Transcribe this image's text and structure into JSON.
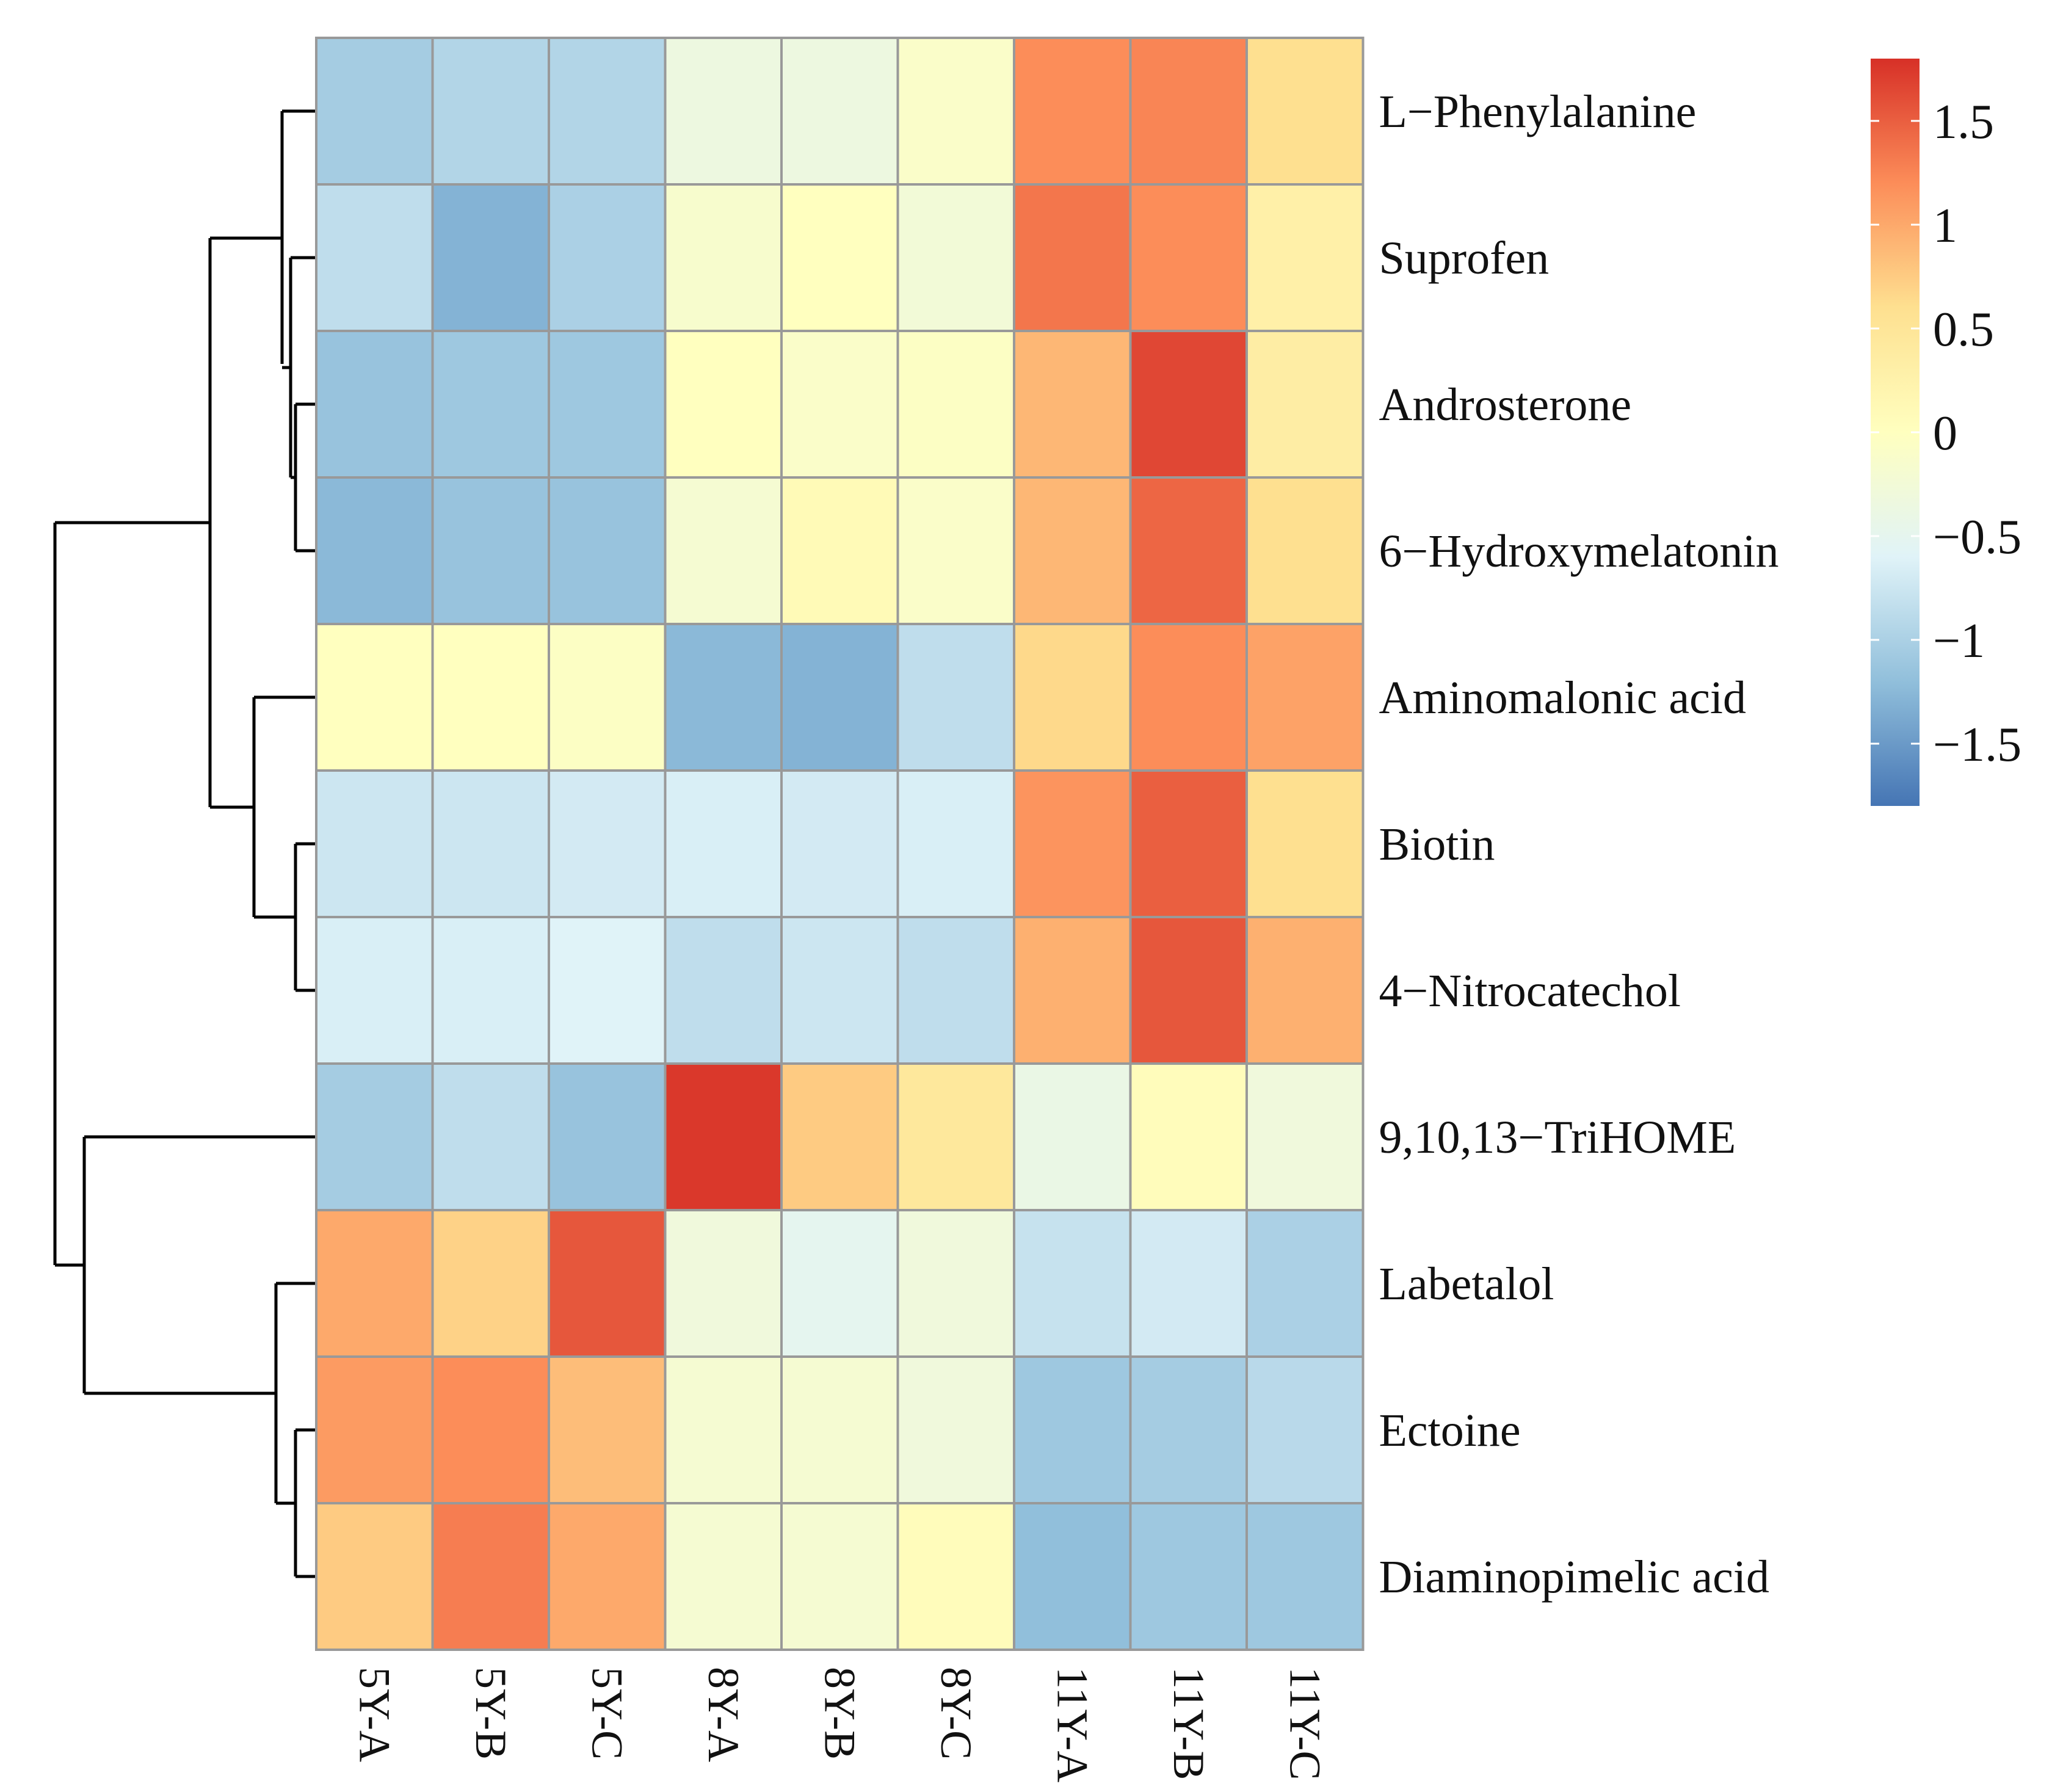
{
  "chart_data": {
    "type": "heatmap",
    "title": "",
    "rows": [
      "L−Phenylalanine",
      "Suprofen",
      "Androsterone",
      "6−Hydroxymelatonin",
      "Aminomalonic acid",
      "Biotin",
      "4−Nitrocatechol",
      "9,10,13−TriHOME",
      "Labetalol",
      "Ectoine",
      "Diaminopimelic acid"
    ],
    "columns": [
      "5Y-A",
      "5Y-B",
      "5Y-C",
      "8Y-A",
      "8Y-B",
      "8Y-C",
      "11Y-A",
      "11Y-B",
      "11Y-C"
    ],
    "values": [
      [
        -1.05,
        -0.95,
        -0.95,
        -0.35,
        -0.35,
        -0.1,
        1.2,
        1.25,
        0.6
      ],
      [
        -0.85,
        -1.3,
        -1.0,
        -0.15,
        0.0,
        -0.25,
        1.35,
        1.2,
        0.3
      ],
      [
        -1.15,
        -1.1,
        -1.1,
        0.0,
        -0.1,
        -0.05,
        0.9,
        1.65,
        0.35
      ],
      [
        -1.25,
        -1.15,
        -1.15,
        -0.2,
        0.1,
        -0.1,
        0.9,
        1.45,
        0.6
      ],
      [
        0.0,
        0.0,
        -0.05,
        -1.25,
        -1.3,
        -0.85,
        0.65,
        1.2,
        1.05
      ],
      [
        -0.75,
        -0.75,
        -0.7,
        -0.65,
        -0.7,
        -0.65,
        1.15,
        1.5,
        0.6
      ],
      [
        -0.65,
        -0.65,
        -0.6,
        -0.85,
        -0.75,
        -0.85,
        0.95,
        1.55,
        0.95
      ],
      [
        -1.05,
        -0.85,
        -1.15,
        1.75,
        0.75,
        0.45,
        -0.4,
        0.05,
        -0.3
      ],
      [
        1.0,
        0.7,
        1.55,
        -0.3,
        -0.5,
        -0.3,
        -0.8,
        -0.7,
        -1.0
      ],
      [
        1.1,
        1.2,
        0.85,
        -0.2,
        -0.2,
        -0.3,
        -1.1,
        -1.05,
        -0.9
      ],
      [
        0.75,
        1.3,
        1.0,
        -0.2,
        -0.2,
        0.05,
        -1.2,
        -1.1,
        -1.1
      ]
    ],
    "scale_min": -1.8,
    "scale_max": 1.8,
    "legend_ticks": [
      1.5,
      1,
      0.5,
      0,
      -0.5,
      -1,
      -1.5
    ],
    "legend_tick_labels": [
      "1.5",
      "1",
      "0.5",
      "0",
      "−0.5",
      "−1",
      "−1.5"
    ],
    "colors": {
      "low": "#4575b4",
      "mid": "#ffffbf",
      "high": "#d73027",
      "stops": [
        "#4575b4",
        "#91bfdb",
        "#e0f3f8",
        "#ffffbf",
        "#fee090",
        "#fc8d59",
        "#d73027"
      ]
    },
    "legend_position": "top-right",
    "row_dendrogram": "shown",
    "column_dendrogram": "none"
  }
}
